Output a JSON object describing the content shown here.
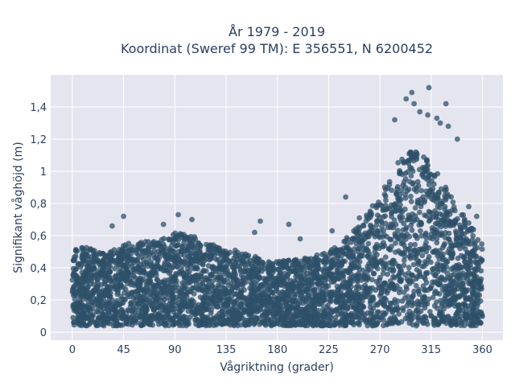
{
  "chart_data": {
    "type": "scatter",
    "title_line1": "År 1979 - 2019",
    "title_line2": "Koordinat (Sweref 99 TM): E 356551, N 6200452",
    "xlabel": "Vågriktning (grader)",
    "ylabel": "Signifikant våghöjd (m)",
    "xlim": [
      -19,
      378
    ],
    "ylim": [
      -0.05,
      1.6
    ],
    "x_ticks": [
      0,
      45,
      90,
      135,
      180,
      225,
      270,
      315,
      360
    ],
    "x_tick_labels": [
      "0",
      "45",
      "90",
      "135",
      "180",
      "225",
      "270",
      "315",
      "360"
    ],
    "y_ticks": [
      0,
      0.2,
      0.4,
      0.6,
      0.8,
      1.0,
      1.2,
      1.4
    ],
    "y_tick_labels": [
      "0",
      "0,2",
      "0,4",
      "0,6",
      "0,8",
      "1",
      "1,2",
      "1,4"
    ],
    "grid": true,
    "background": "#e5e5f0",
    "marker_color": "#2e5068",
    "envelope": [
      {
        "dir": 0,
        "hs": 0.55
      },
      {
        "dir": 15,
        "hs": 0.52
      },
      {
        "dir": 30,
        "hs": 0.5
      },
      {
        "dir": 45,
        "hs": 0.55
      },
      {
        "dir": 60,
        "hs": 0.56
      },
      {
        "dir": 75,
        "hs": 0.57
      },
      {
        "dir": 90,
        "hs": 0.62
      },
      {
        "dir": 105,
        "hs": 0.6
      },
      {
        "dir": 120,
        "hs": 0.55
      },
      {
        "dir": 135,
        "hs": 0.52
      },
      {
        "dir": 150,
        "hs": 0.5
      },
      {
        "dir": 165,
        "hs": 0.46
      },
      {
        "dir": 180,
        "hs": 0.44
      },
      {
        "dir": 195,
        "hs": 0.45
      },
      {
        "dir": 210,
        "hs": 0.47
      },
      {
        "dir": 225,
        "hs": 0.5
      },
      {
        "dir": 240,
        "hs": 0.58
      },
      {
        "dir": 255,
        "hs": 0.7
      },
      {
        "dir": 270,
        "hs": 0.85
      },
      {
        "dir": 285,
        "hs": 1.05
      },
      {
        "dir": 300,
        "hs": 1.15
      },
      {
        "dir": 315,
        "hs": 1.05
      },
      {
        "dir": 330,
        "hs": 0.88
      },
      {
        "dir": 345,
        "hs": 0.72
      },
      {
        "dir": 360,
        "hs": 0.55
      }
    ],
    "outliers": [
      {
        "x": 313,
        "y": 1.52
      },
      {
        "x": 298,
        "y": 1.49
      },
      {
        "x": 293,
        "y": 1.45
      },
      {
        "x": 300,
        "y": 1.42
      },
      {
        "x": 328,
        "y": 1.42
      },
      {
        "x": 305,
        "y": 1.37
      },
      {
        "x": 312,
        "y": 1.35
      },
      {
        "x": 320,
        "y": 1.33
      },
      {
        "x": 283,
        "y": 1.32
      },
      {
        "x": 323,
        "y": 1.3
      },
      {
        "x": 330,
        "y": 1.28
      },
      {
        "x": 338,
        "y": 1.2
      },
      {
        "x": 45,
        "y": 0.72
      },
      {
        "x": 93,
        "y": 0.73
      },
      {
        "x": 105,
        "y": 0.7
      },
      {
        "x": 165,
        "y": 0.69
      },
      {
        "x": 190,
        "y": 0.67
      },
      {
        "x": 252,
        "y": 0.71
      },
      {
        "x": 228,
        "y": 0.63
      },
      {
        "x": 35,
        "y": 0.66
      },
      {
        "x": 80,
        "y": 0.67
      },
      {
        "x": 348,
        "y": 0.78
      },
      {
        "x": 355,
        "y": 0.72
      },
      {
        "x": 240,
        "y": 0.84
      },
      {
        "x": 160,
        "y": 0.62
      },
      {
        "x": 200,
        "y": 0.58
      }
    ]
  }
}
